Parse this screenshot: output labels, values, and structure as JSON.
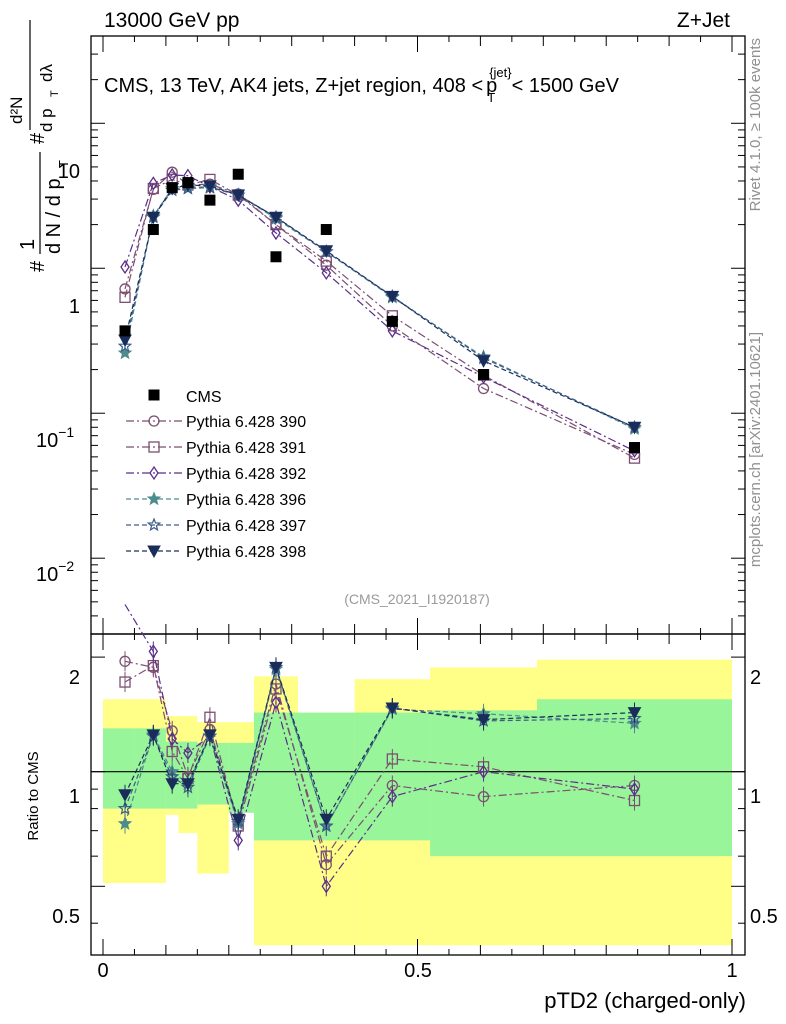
{
  "header": {
    "left": "13000 GeV pp",
    "right": "Z+Jet"
  },
  "chart_data": {
    "type": "scatter",
    "title": "CMS, 13 TeV, AK4 jets, Z+jet region, 408 < p_T^{jet} < 1500 GeV",
    "title_parts": {
      "main": "CMS, 13 TeV, AK4 jets, Z+jet region, 408 <",
      "sym": "p",
      "sub": "T",
      "sup": "{jet}",
      "tail": "< 1500 GeV"
    },
    "ylabel": "1/dN/dp_T  d²N/dp_T dλ",
    "ylabel_parts": {
      "d2N": "d²N",
      "dpt_dl": "d p",
      "T": "T",
      "dlam": "dλ",
      "one": "1",
      "dN": "d N / d p",
      "hash": "#"
    },
    "xlabel": "pTD2 (charged-only)",
    "ratio_ylabel": "Ratio to CMS",
    "xlim": [
      0,
      1
    ],
    "ylim_log": [
      0.003,
      40
    ],
    "ratio_ylim": [
      0.33,
      2.3
    ],
    "x_ticks": [
      "0",
      "0.5",
      "1"
    ],
    "y_ticks": {
      "ten": "10",
      "one": "1",
      "tenth_base": "10",
      "tenth_exp": "−1",
      "hundredth_base": "10",
      "hundredth_exp": "−2"
    },
    "ratio_ticks": [
      "0.5",
      "1",
      "2"
    ],
    "watermark": "(CMS_2021_I1920187)",
    "side_text_top": "Rivet 4.1.0, ≥ 100k events",
    "side_text_bottom": "mcplots.cern.ch [arXiv:2401.10621]",
    "bins": [
      [
        0.0,
        0.05
      ],
      [
        0.05,
        0.1
      ],
      [
        0.1,
        0.12
      ],
      [
        0.12,
        0.15
      ],
      [
        0.15,
        0.2
      ],
      [
        0.2,
        0.24
      ],
      [
        0.24,
        0.31
      ],
      [
        0.31,
        0.4
      ],
      [
        0.4,
        0.52
      ],
      [
        0.52,
        0.69
      ],
      [
        0.69,
        1.0
      ]
    ],
    "x": [
      0.035,
      0.08,
      0.11,
      0.135,
      0.17,
      0.215,
      0.275,
      0.355,
      0.46,
      0.605,
      0.845
    ],
    "data": {
      "name": "CMS",
      "values": [
        0.37,
        1.85,
        3.6,
        3.9,
        2.95,
        4.45,
        1.2,
        1.85,
        0.43,
        0.185,
        0.058
      ]
    },
    "band_green": [
      [
        0.8,
        1.3
      ],
      [
        0.8,
        1.3
      ],
      [
        0.8,
        1.2
      ],
      [
        0.8,
        1.2
      ],
      [
        0.82,
        1.19
      ],
      [
        0.78,
        1.19
      ],
      [
        0.66,
        1.43
      ],
      [
        0.66,
        1.43
      ],
      [
        0.66,
        1.43
      ],
      [
        0.6,
        1.45
      ],
      [
        0.6,
        1.55
      ]
    ],
    "band_yellow": [
      [
        0.51,
        1.55
      ],
      [
        0.51,
        1.55
      ],
      [
        0.77,
        1.4
      ],
      [
        0.69,
        1.4
      ],
      [
        0.54,
        1.35
      ],
      [
        0.8,
        1.35
      ],
      [
        0.35,
        1.78
      ],
      [
        0.35,
        1.35
      ],
      [
        0.35,
        1.75
      ],
      [
        0.35,
        1.88
      ],
      [
        0.35,
        1.97
      ]
    ],
    "series": [
      {
        "name": "Pythia 6.428 390",
        "color": "#7b4f72",
        "marker": "circle-open",
        "dash": "8,3,2,3",
        "values": [
          0.72,
          3.5,
          4.6,
          3.75,
          3.8,
          3.25,
          2.0,
          1.05,
          0.4,
          0.148,
          0.052
        ],
        "ratios": [
          1.95,
          1.88,
          1.28,
          0.97,
          1.29,
          0.74,
          1.7,
          0.57,
          0.92,
          0.86,
          0.92
        ]
      },
      {
        "name": "Pythia 6.428 391",
        "color": "#7b4f72",
        "marker": "square-open",
        "dash": "8,3,2,3",
        "values": [
          0.63,
          3.55,
          4.1,
          3.75,
          4.1,
          3.2,
          2.0,
          1.12,
          0.47,
          0.183,
          0.049
        ],
        "ratios": [
          1.72,
          1.9,
          1.13,
          0.96,
          1.39,
          0.72,
          1.65,
          0.6,
          1.08,
          1.03,
          0.84
        ]
      },
      {
        "name": "Pythia 6.428 392",
        "color": "#5b2f8a",
        "marker": "diamond-open",
        "dash": "8,3,2,3",
        "values": [
          1.02,
          3.85,
          4.4,
          4.35,
          3.65,
          2.95,
          1.75,
          0.93,
          0.37,
          0.178,
          0.055
        ],
        "ratios": [
          2.75,
          2.07,
          1.22,
          1.12,
          1.24,
          0.66,
          1.52,
          0.5,
          0.86,
          1.0,
          0.9
        ]
      },
      {
        "name": "Pythia 6.428 396",
        "color": "#4d8c8c",
        "marker": "star-filled",
        "dash": "5,3",
        "values": [
          0.26,
          2.3,
          3.55,
          3.6,
          3.65,
          3.2,
          2.2,
          1.3,
          0.63,
          0.245,
          0.078
        ],
        "ratios": [
          0.73,
          1.25,
          1.0,
          0.93,
          1.24,
          0.73,
          1.86,
          0.72,
          1.46,
          1.42,
          1.34
        ]
      },
      {
        "name": "Pythia 6.428 397",
        "color": "#3d5c8a",
        "marker": "star-open",
        "dash": "5,3",
        "values": [
          0.29,
          2.25,
          3.45,
          3.55,
          3.6,
          3.2,
          2.25,
          1.3,
          0.64,
          0.24,
          0.08
        ],
        "ratios": [
          0.8,
          1.24,
          0.97,
          0.91,
          1.24,
          0.74,
          1.88,
          0.72,
          1.47,
          1.36,
          1.38
        ]
      },
      {
        "name": "Pythia 6.428 398",
        "color": "#1a2d5a",
        "marker": "triangle-down-filled",
        "dash": "5,3",
        "values": [
          0.32,
          2.25,
          3.55,
          3.75,
          3.7,
          3.2,
          2.25,
          1.32,
          0.64,
          0.23,
          0.08
        ],
        "ratios": [
          0.87,
          1.25,
          0.93,
          0.93,
          1.25,
          0.75,
          1.88,
          0.75,
          1.47,
          1.37,
          1.43
        ]
      }
    ]
  }
}
